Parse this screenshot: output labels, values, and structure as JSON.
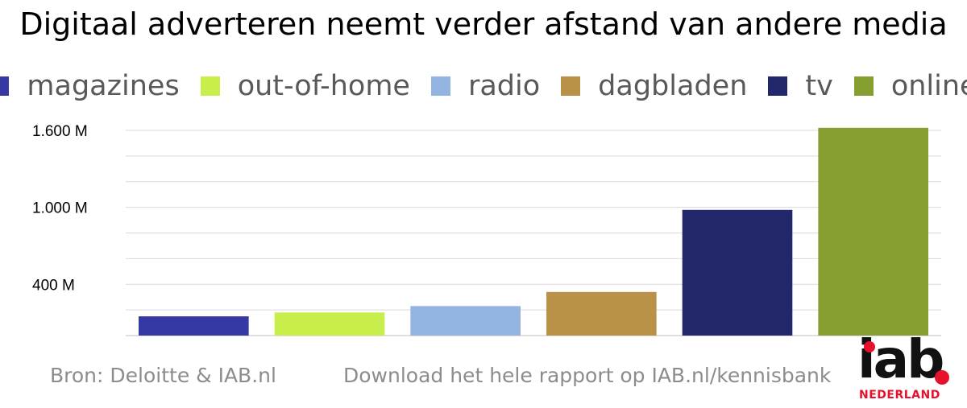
{
  "chart_data": {
    "type": "bar",
    "title": "Digitaal adverteren neemt verder afstand van andere media",
    "categories": [
      "magazines",
      "out-of-home",
      "radio",
      "dagbladen",
      "tv",
      "online"
    ],
    "values": [
      150,
      180,
      230,
      340,
      980,
      1620
    ],
    "colors": [
      "#3439a4",
      "#c8ee4b",
      "#93b3e0",
      "#b99248",
      "#22266a",
      "#879e31"
    ],
    "ylim": [
      0,
      1600
    ],
    "yticks": [
      {
        "value": 400,
        "label": "400 M"
      },
      {
        "value": 1000,
        "label": "1.000 M"
      },
      {
        "value": 1600,
        "label": "1.600 M"
      }
    ],
    "grid": true,
    "legend_position": "top",
    "xlabel": "",
    "ylabel": ""
  },
  "footer": {
    "source": "Bron: Deloitte & IAB.nl",
    "download": "Download het hele rapport op IAB.nl/kennisbank"
  },
  "logo": {
    "word": "iab",
    "sub": "NEDERLAND",
    "color": "#e8112d"
  }
}
